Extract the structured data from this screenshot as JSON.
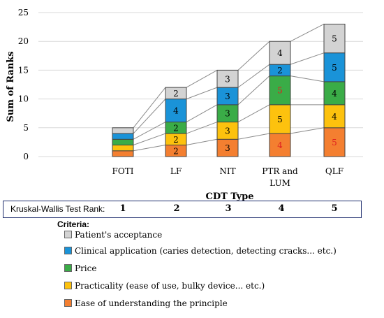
{
  "chart_data": {
    "type": "bar",
    "stacked": true,
    "categories": [
      "FOTI",
      "LF",
      "NIT",
      "PTR and LUM",
      "QLF"
    ],
    "series": [
      {
        "name": "Ease of understanding the principle",
        "color": "#f47f30",
        "values": [
          1,
          2,
          3,
          4,
          5
        ]
      },
      {
        "name": "Practicality (ease of use, bulky device... etc.)",
        "color": "#fdc20e",
        "values": [
          1,
          2,
          3,
          5,
          4
        ]
      },
      {
        "name": "Price",
        "color": "#3aac47",
        "values": [
          1,
          2,
          3,
          5,
          4
        ]
      },
      {
        "name": "Clinical application (caries detection, detecting cracks... etc.)",
        "color": "#1a93d8",
        "values": [
          1,
          4,
          3,
          2,
          5
        ]
      },
      {
        "name": "Patient's acceptance",
        "color": "#d3d3d3",
        "values": [
          1,
          2,
          3,
          4,
          5
        ]
      }
    ],
    "data_labels": [
      [
        "",
        "2",
        "3",
        "4",
        "5"
      ],
      [
        "",
        "2",
        "3",
        "5",
        "4"
      ],
      [
        "",
        "2",
        "3",
        "5",
        "4"
      ],
      [
        "",
        "4",
        "3",
        "2",
        "5"
      ],
      [
        "",
        "2",
        "3",
        "4",
        "5"
      ]
    ],
    "red_labels": [
      [
        3,
        0
      ],
      [
        3,
        2
      ],
      [
        4,
        0
      ]
    ],
    "xlabel": "CDT Type",
    "ylabel": "Sum of Ranks",
    "ylim": [
      0,
      25
    ],
    "yticks": [
      0,
      5,
      10,
      15,
      20,
      25
    ],
    "grid": true,
    "series_lines": true
  },
  "rank_row": {
    "label": "Kruskal-Wallis Test Rank:",
    "values": [
      "1",
      "2",
      "3",
      "4",
      "5"
    ]
  },
  "legend": {
    "title": "Criteria",
    "title_suffix": ":",
    "items": [
      {
        "label": "Patient's acceptance",
        "color": "#d3d3d3"
      },
      {
        "label": "Clinical application (caries detection, detecting cracks... etc.)",
        "color": "#1a93d8"
      },
      {
        "label": "Price",
        "color": "#3aac47"
      },
      {
        "label": "Practicality (ease of use, bulky device... etc.)",
        "color": "#fdc20e"
      },
      {
        "label": "Ease of understanding the principle",
        "color": "#f47f30"
      }
    ]
  }
}
